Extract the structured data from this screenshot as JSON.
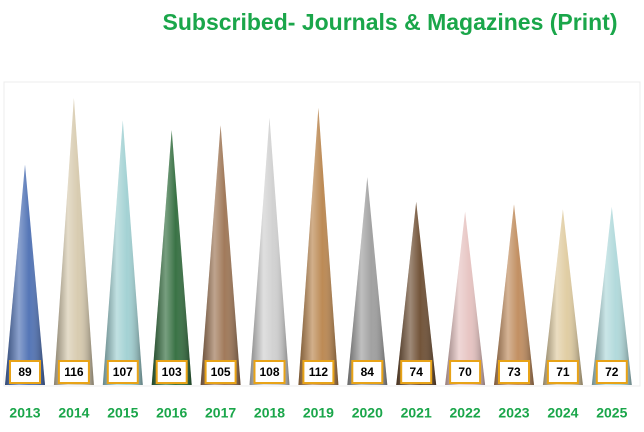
{
  "chart_data": {
    "type": "cone",
    "title": "Subscribed- Journals & Magazines (Print)",
    "categories": [
      "2013",
      "2014",
      "2015",
      "2016",
      "2017",
      "2018",
      "2019",
      "2020",
      "2021",
      "2022",
      "2023",
      "2024",
      "2025"
    ],
    "values": [
      89,
      116,
      107,
      103,
      105,
      108,
      112,
      84,
      74,
      70,
      73,
      71,
      72
    ],
    "colors": [
      "#4c6fb3",
      "#d6c9ac",
      "#9fd0d2",
      "#2f6b3b",
      "#9c7352",
      "#cfcfcf",
      "#b9844c",
      "#9d9d9d",
      "#6b4b2f",
      "#e6c2c0",
      "#bf8a5b",
      "#dfcb9f",
      "#aed8da"
    ],
    "label_border": "#e8a317"
  }
}
